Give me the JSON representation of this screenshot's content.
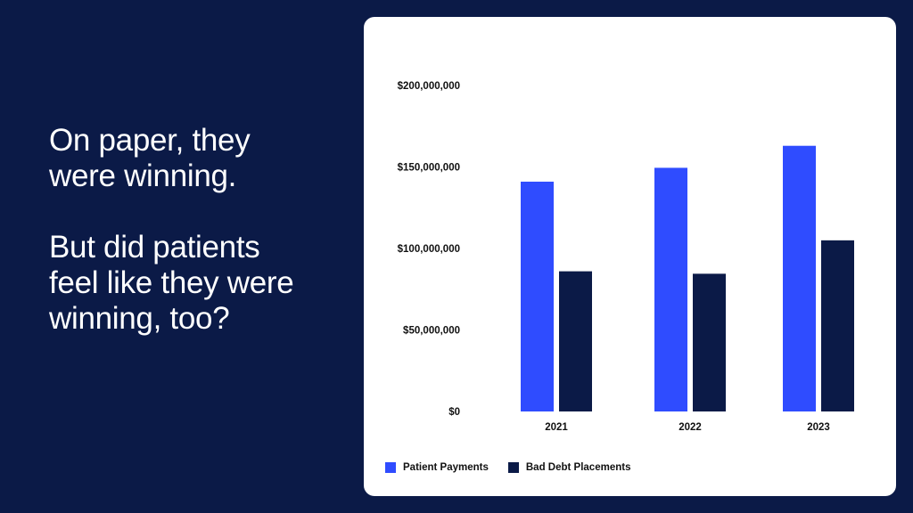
{
  "headline": {
    "line1": "On paper, they\nwere winning.",
    "line2": "But did patients\nfeel like they were\nwinning, too?"
  },
  "colors": {
    "background": "#0b1a47",
    "patient_payments": "#2f4cff",
    "bad_debt": "#0b1a47"
  },
  "chart_data": {
    "type": "bar",
    "categories": [
      "2021",
      "2022",
      "2023"
    ],
    "series": [
      {
        "name": "Patient Payments",
        "values": [
          141000000,
          149500000,
          163000000
        ]
      },
      {
        "name": "Bad Debt Placements",
        "values": [
          86000000,
          84500000,
          105000000
        ]
      }
    ],
    "ylim": [
      0,
      200000000
    ],
    "yticks": [
      "$0",
      "$50,000,000",
      "$100,000,000",
      "$150,000,000",
      "$200,000,000"
    ],
    "legend_position": "bottom-left",
    "grid": false
  }
}
